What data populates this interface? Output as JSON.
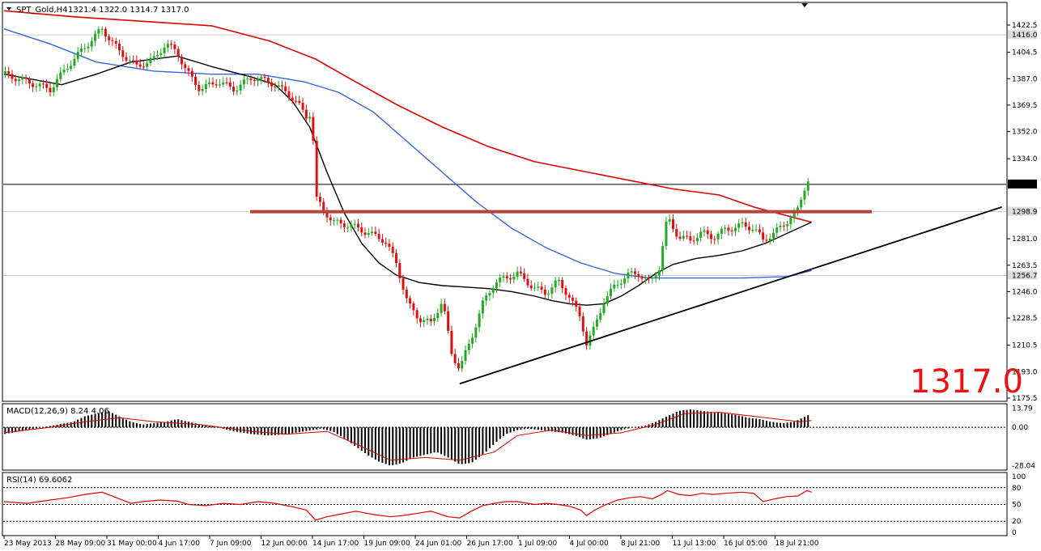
{
  "chart_data": {
    "type": "candlestick",
    "header": {
      "symbol": "SPT_Gold,H4",
      "ohlc": "1321.4 1322.0 1314.7 1317.0"
    },
    "price_axis": {
      "ticks": [
        "1422.5",
        "1404.5",
        "1387.0",
        "1369.5",
        "1352.0",
        "1334.0",
        "1281.0",
        "1263.5",
        "1246.0",
        "1228.5",
        "1210.5",
        "1193.0",
        "1175.5"
      ],
      "current_price": "1317.0",
      "marker_labels": [
        "1416.0",
        "1298.9",
        "1256.7"
      ],
      "ylim": [
        1175.5,
        1422.5
      ]
    },
    "time_axis": {
      "labels": [
        "23 May 2013",
        "28 May 09:00",
        "31 May 00:00",
        "4 Jun 17:00",
        "7 Jun 09:00",
        "12 Jun 00:00",
        "14 Jun 17:00",
        "19 Jun 09:00",
        "24 Jun 01:00",
        "26 Jun 17:00",
        "1 Jul 09:00",
        "4 Jul 00:00",
        "8 Jul 21:00",
        "11 Jul 13:00",
        "16 Jul 05:00",
        "18 Jul 21:00"
      ]
    },
    "big_price_label": "1317.0",
    "price_path": [
      [
        0,
        1390
      ],
      [
        20,
        1385
      ],
      [
        40,
        1380
      ],
      [
        55,
        1395
      ],
      [
        70,
        1408
      ],
      [
        85,
        1420
      ],
      [
        100,
        1405
      ],
      [
        115,
        1395
      ],
      [
        130,
        1400
      ],
      [
        140,
        1410
      ],
      [
        150,
        1405
      ],
      [
        158,
        1392
      ],
      [
        170,
        1380
      ],
      [
        185,
        1385
      ],
      [
        200,
        1380
      ],
      [
        215,
        1388
      ],
      [
        230,
        1385
      ],
      [
        245,
        1378
      ],
      [
        255,
        1370
      ],
      [
        262,
        1362
      ],
      [
        267,
        1365
      ],
      [
        270,
        1308
      ],
      [
        285,
        1292
      ],
      [
        300,
        1290
      ],
      [
        315,
        1285
      ],
      [
        330,
        1280
      ],
      [
        340,
        1265
      ],
      [
        350,
        1238
      ],
      [
        360,
        1228
      ],
      [
        370,
        1225
      ],
      [
        380,
        1240
      ],
      [
        388,
        1205
      ],
      [
        395,
        1195
      ],
      [
        405,
        1215
      ],
      [
        415,
        1238
      ],
      [
        425,
        1252
      ],
      [
        435,
        1255
      ],
      [
        445,
        1258
      ],
      [
        460,
        1248
      ],
      [
        470,
        1245
      ],
      [
        480,
        1253
      ],
      [
        490,
        1243
      ],
      [
        500,
        1228
      ],
      [
        505,
        1212
      ],
      [
        512,
        1222
      ],
      [
        520,
        1240
      ],
      [
        530,
        1250
      ],
      [
        540,
        1257
      ],
      [
        550,
        1258
      ],
      [
        560,
        1252
      ],
      [
        568,
        1262
      ],
      [
        575,
        1295
      ],
      [
        585,
        1282
      ],
      [
        595,
        1280
      ],
      [
        605,
        1285
      ],
      [
        615,
        1282
      ],
      [
        625,
        1287
      ],
      [
        640,
        1290
      ],
      [
        650,
        1288
      ],
      [
        658,
        1280
      ],
      [
        668,
        1285
      ],
      [
        678,
        1292
      ],
      [
        688,
        1300
      ],
      [
        696,
        1320
      ]
    ],
    "ma_black": [
      [
        0,
        1390
      ],
      [
        50,
        1383
      ],
      [
        80,
        1390
      ],
      [
        110,
        1398
      ],
      [
        150,
        1402
      ],
      [
        180,
        1395
      ],
      [
        215,
        1388
      ],
      [
        235,
        1383
      ],
      [
        250,
        1372
      ],
      [
        265,
        1355
      ],
      [
        280,
        1325
      ],
      [
        295,
        1298
      ],
      [
        310,
        1278
      ],
      [
        325,
        1265
      ],
      [
        340,
        1257
      ],
      [
        360,
        1252
      ],
      [
        380,
        1250
      ],
      [
        400,
        1249
      ],
      [
        420,
        1248
      ],
      [
        440,
        1246
      ],
      [
        460,
        1243
      ],
      [
        475,
        1240
      ],
      [
        490,
        1238
      ],
      [
        505,
        1237
      ],
      [
        520,
        1238
      ],
      [
        535,
        1243
      ],
      [
        550,
        1250
      ],
      [
        565,
        1258
      ],
      [
        580,
        1264
      ],
      [
        600,
        1268
      ],
      [
        620,
        1270
      ],
      [
        640,
        1273
      ],
      [
        660,
        1278
      ],
      [
        680,
        1285
      ],
      [
        700,
        1292
      ]
    ],
    "ma_blue": [
      [
        0,
        1420
      ],
      [
        40,
        1410
      ],
      [
        80,
        1398
      ],
      [
        130,
        1392
      ],
      [
        180,
        1390
      ],
      [
        220,
        1390
      ],
      [
        260,
        1385
      ],
      [
        290,
        1378
      ],
      [
        320,
        1365
      ],
      [
        350,
        1345
      ],
      [
        380,
        1325
      ],
      [
        410,
        1305
      ],
      [
        440,
        1288
      ],
      [
        470,
        1275
      ],
      [
        500,
        1265
      ],
      [
        530,
        1258
      ],
      [
        560,
        1255
      ],
      [
        600,
        1255
      ],
      [
        640,
        1255
      ],
      [
        680,
        1256
      ],
      [
        700,
        1260
      ]
    ],
    "ma_red": [
      [
        0,
        1432
      ],
      [
        60,
        1428
      ],
      [
        120,
        1425
      ],
      [
        180,
        1422
      ],
      [
        230,
        1412
      ],
      [
        270,
        1400
      ],
      [
        300,
        1387
      ],
      [
        340,
        1370
      ],
      [
        380,
        1355
      ],
      [
        420,
        1342
      ],
      [
        460,
        1332
      ],
      [
        500,
        1326
      ],
      [
        540,
        1320
      ],
      [
        580,
        1314
      ],
      [
        620,
        1310
      ],
      [
        650,
        1302
      ],
      [
        680,
        1296
      ],
      [
        700,
        1292
      ]
    ],
    "resistance_price": 1298.9,
    "trendline": {
      "x1": 395,
      "y1": 1185,
      "x2": 865,
      "y2": 1302
    },
    "macd": {
      "label": "MACD(12,26,9) 8.24 4.06",
      "ticks": [
        "13.79",
        "0.00",
        "-28.04"
      ],
      "ylim": [
        -30,
        16
      ],
      "hist": [
        [
          0,
          -5
        ],
        [
          20,
          -2
        ],
        [
          40,
          1
        ],
        [
          60,
          4
        ],
        [
          70,
          8
        ],
        [
          80,
          10
        ],
        [
          90,
          12
        ],
        [
          100,
          8
        ],
        [
          110,
          4
        ],
        [
          120,
          2
        ],
        [
          130,
          3
        ],
        [
          140,
          4
        ],
        [
          150,
          6
        ],
        [
          160,
          4
        ],
        [
          170,
          2
        ],
        [
          180,
          1
        ],
        [
          190,
          -1
        ],
        [
          200,
          -3
        ],
        [
          215,
          -5
        ],
        [
          230,
          -6
        ],
        [
          245,
          -5
        ],
        [
          260,
          -3
        ],
        [
          275,
          -1
        ],
        [
          285,
          -3
        ],
        [
          295,
          -8
        ],
        [
          305,
          -14
        ],
        [
          315,
          -20
        ],
        [
          325,
          -25
        ],
        [
          335,
          -28
        ],
        [
          345,
          -26
        ],
        [
          355,
          -22
        ],
        [
          365,
          -20
        ],
        [
          375,
          -18
        ],
        [
          385,
          -22
        ],
        [
          395,
          -27
        ],
        [
          405,
          -26
        ],
        [
          415,
          -20
        ],
        [
          425,
          -12
        ],
        [
          435,
          -5
        ],
        [
          445,
          -2
        ],
        [
          455,
          -1
        ],
        [
          465,
          -2
        ],
        [
          475,
          -3
        ],
        [
          485,
          -4
        ],
        [
          495,
          -6
        ],
        [
          505,
          -9
        ],
        [
          515,
          -8
        ],
        [
          525,
          -5
        ],
        [
          535,
          -2
        ],
        [
          545,
          0
        ],
        [
          555,
          1
        ],
        [
          565,
          4
        ],
        [
          575,
          8
        ],
        [
          585,
          12
        ],
        [
          595,
          13
        ],
        [
          605,
          12
        ],
        [
          615,
          11
        ],
        [
          625,
          10
        ],
        [
          635,
          9
        ],
        [
          645,
          7
        ],
        [
          655,
          6
        ],
        [
          665,
          4
        ],
        [
          675,
          3
        ],
        [
          685,
          4
        ],
        [
          695,
          8
        ],
        [
          700,
          10
        ]
      ],
      "signal": [
        [
          0,
          -4
        ],
        [
          40,
          0
        ],
        [
          70,
          4
        ],
        [
          100,
          7
        ],
        [
          130,
          4
        ],
        [
          170,
          2
        ],
        [
          215,
          -3
        ],
        [
          245,
          -5
        ],
        [
          280,
          -3
        ],
        [
          305,
          -12
        ],
        [
          335,
          -24
        ],
        [
          365,
          -22
        ],
        [
          395,
          -24
        ],
        [
          425,
          -18
        ],
        [
          445,
          -6
        ],
        [
          475,
          -2
        ],
        [
          505,
          -6
        ],
        [
          535,
          -4
        ],
        [
          565,
          2
        ],
        [
          590,
          10
        ],
        [
          620,
          11
        ],
        [
          660,
          7
        ],
        [
          690,
          4
        ],
        [
          700,
          5
        ]
      ]
    },
    "rsi": {
      "label": "RSI(14) 69.6062",
      "ticks": [
        "100",
        "80",
        "50",
        "20",
        "0"
      ],
      "levels": [
        80,
        50,
        20
      ],
      "ylim": [
        0,
        100
      ],
      "values": [
        [
          0,
          55
        ],
        [
          20,
          52
        ],
        [
          40,
          58
        ],
        [
          55,
          62
        ],
        [
          70,
          68
        ],
        [
          85,
          72
        ],
        [
          100,
          60
        ],
        [
          110,
          52
        ],
        [
          120,
          55
        ],
        [
          135,
          58
        ],
        [
          150,
          56
        ],
        [
          160,
          50
        ],
        [
          175,
          48
        ],
        [
          190,
          52
        ],
        [
          205,
          50
        ],
        [
          220,
          55
        ],
        [
          235,
          52
        ],
        [
          250,
          46
        ],
        [
          262,
          40
        ],
        [
          270,
          22
        ],
        [
          280,
          28
        ],
        [
          290,
          32
        ],
        [
          305,
          38
        ],
        [
          320,
          32
        ],
        [
          335,
          28
        ],
        [
          345,
          30
        ],
        [
          355,
          33
        ],
        [
          370,
          38
        ],
        [
          385,
          28
        ],
        [
          395,
          26
        ],
        [
          405,
          38
        ],
        [
          415,
          48
        ],
        [
          425,
          52
        ],
        [
          435,
          55
        ],
        [
          445,
          55
        ],
        [
          460,
          50
        ],
        [
          470,
          52
        ],
        [
          480,
          50
        ],
        [
          490,
          47
        ],
        [
          500,
          40
        ],
        [
          505,
          30
        ],
        [
          512,
          40
        ],
        [
          522,
          50
        ],
        [
          532,
          58
        ],
        [
          542,
          62
        ],
        [
          552,
          64
        ],
        [
          562,
          60
        ],
        [
          570,
          68
        ],
        [
          575,
          75
        ],
        [
          585,
          68
        ],
        [
          595,
          66
        ],
        [
          605,
          70
        ],
        [
          615,
          68
        ],
        [
          625,
          70
        ],
        [
          640,
          72
        ],
        [
          650,
          70
        ],
        [
          658,
          55
        ],
        [
          668,
          60
        ],
        [
          678,
          64
        ],
        [
          688,
          65
        ],
        [
          696,
          75
        ],
        [
          700,
          72
        ]
      ]
    }
  }
}
